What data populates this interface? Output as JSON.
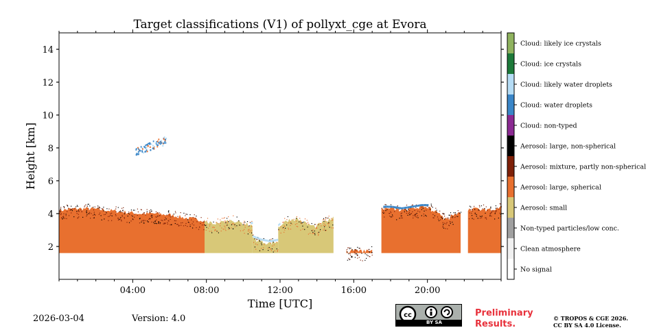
{
  "chart_data": {
    "type": "heatmap",
    "title": "Target classifications (V1) of pollyxt_cge at Evora",
    "xlabel": "Time [UTC]",
    "ylabel": "Height [km]",
    "xlim": [
      0,
      24
    ],
    "ylim": [
      0,
      15
    ],
    "x_ticks": [
      4,
      8,
      12,
      16,
      20
    ],
    "x_tick_labels": [
      "04:00",
      "08:00",
      "12:00",
      "16:00",
      "20:00"
    ],
    "y_ticks": [
      2,
      4,
      6,
      8,
      10,
      12,
      14
    ],
    "y_tick_labels": [
      "2",
      "4",
      "6",
      "8",
      "10",
      "12",
      "14"
    ],
    "legend": [
      {
        "label": "Cloud: likely ice crystals",
        "color": "#8fb35f"
      },
      {
        "label": "Cloud: ice crystals",
        "color": "#1d7a3a"
      },
      {
        "label": "Cloud: likely water droplets",
        "color": "#b5dcf5"
      },
      {
        "label": "Cloud: water droplets",
        "color": "#3a86c8"
      },
      {
        "label": "Cloud: non-typed",
        "color": "#8b2a92"
      },
      {
        "label": "Aerosol: large, non-spherical",
        "color": "#000000"
      },
      {
        "label": "Aerosol: mixture, partly non-spherical",
        "color": "#7e2008"
      },
      {
        "label": "Aerosol: large, spherical",
        "color": "#e8702f"
      },
      {
        "label": "Aerosol: small",
        "color": "#d8c878"
      },
      {
        "label": "Non-typed particles/low conc.",
        "color": "#a0a0a0"
      },
      {
        "label": "Clean atmosphere",
        "color": "#f0f0f0"
      },
      {
        "label": "No signal",
        "color": "#ffffff"
      }
    ],
    "profile_base_km": 1.6,
    "segments": [
      {
        "class": "Aerosol: large, spherical",
        "t_start": 0.0,
        "t_end": 7.9,
        "top_km": [
          4.2,
          4.3,
          4.3,
          4.2,
          4.1,
          4.0,
          4.0,
          3.9,
          3.7,
          3.6
        ]
      },
      {
        "class": "Aerosol: small",
        "t_start": 7.9,
        "t_end": 10.5,
        "top_km": [
          3.5,
          3.4,
          3.5,
          3.6,
          3.4,
          3.3
        ]
      },
      {
        "class": "Aerosol: small",
        "t_start": 10.5,
        "t_end": 11.9,
        "top_km": [
          2.5,
          2.3,
          2.2,
          2.3
        ]
      },
      {
        "class": "Aerosol: small",
        "t_start": 11.9,
        "t_end": 14.9,
        "top_km": [
          3.2,
          3.6,
          3.7,
          3.4,
          3.2,
          3.5,
          3.7
        ]
      },
      {
        "class": "Aerosol: large, spherical",
        "t_start": 15.6,
        "t_end": 17.0,
        "top_km": [
          1.7,
          1.8,
          1.7,
          1.8
        ]
      },
      {
        "class": "Aerosol: large, spherical",
        "t_start": 17.5,
        "t_end": 20.2,
        "top_km": [
          4.3,
          4.3,
          4.2,
          4.3,
          4.4,
          4.4
        ]
      },
      {
        "class": "Aerosol: large, spherical",
        "t_start": 20.2,
        "t_end": 21.8,
        "top_km": [
          4.2,
          4.0,
          3.6,
          3.9,
          4.1
        ]
      },
      {
        "class": "Aerosol: large, spherical",
        "t_start": 22.2,
        "t_end": 24.0,
        "top_km": [
          4.2,
          4.3,
          4.2,
          4.4
        ]
      }
    ],
    "cloud_patch": {
      "class": "Cloud: water droplets",
      "t_start": 4.1,
      "t_end": 5.8,
      "base_km": 7.5,
      "top_km": 8.6
    },
    "cloud_caps": [
      {
        "class": "Cloud: likely water droplets",
        "t_start": 10.4,
        "t_end": 12.0
      },
      {
        "class": "Cloud: water droplets",
        "t_start": 17.6,
        "t_end": 20.0
      }
    ]
  },
  "footer": {
    "date": "2026-03-04",
    "version": "Version: 4.0",
    "preliminary_line1": "Preliminary",
    "preliminary_line2": "Results.",
    "copyright_line1": "© TROPOS & CGE 2026.",
    "copyright_line2": "CC BY SA 4.0 License.",
    "cc_badge_text": "BY   SA"
  }
}
